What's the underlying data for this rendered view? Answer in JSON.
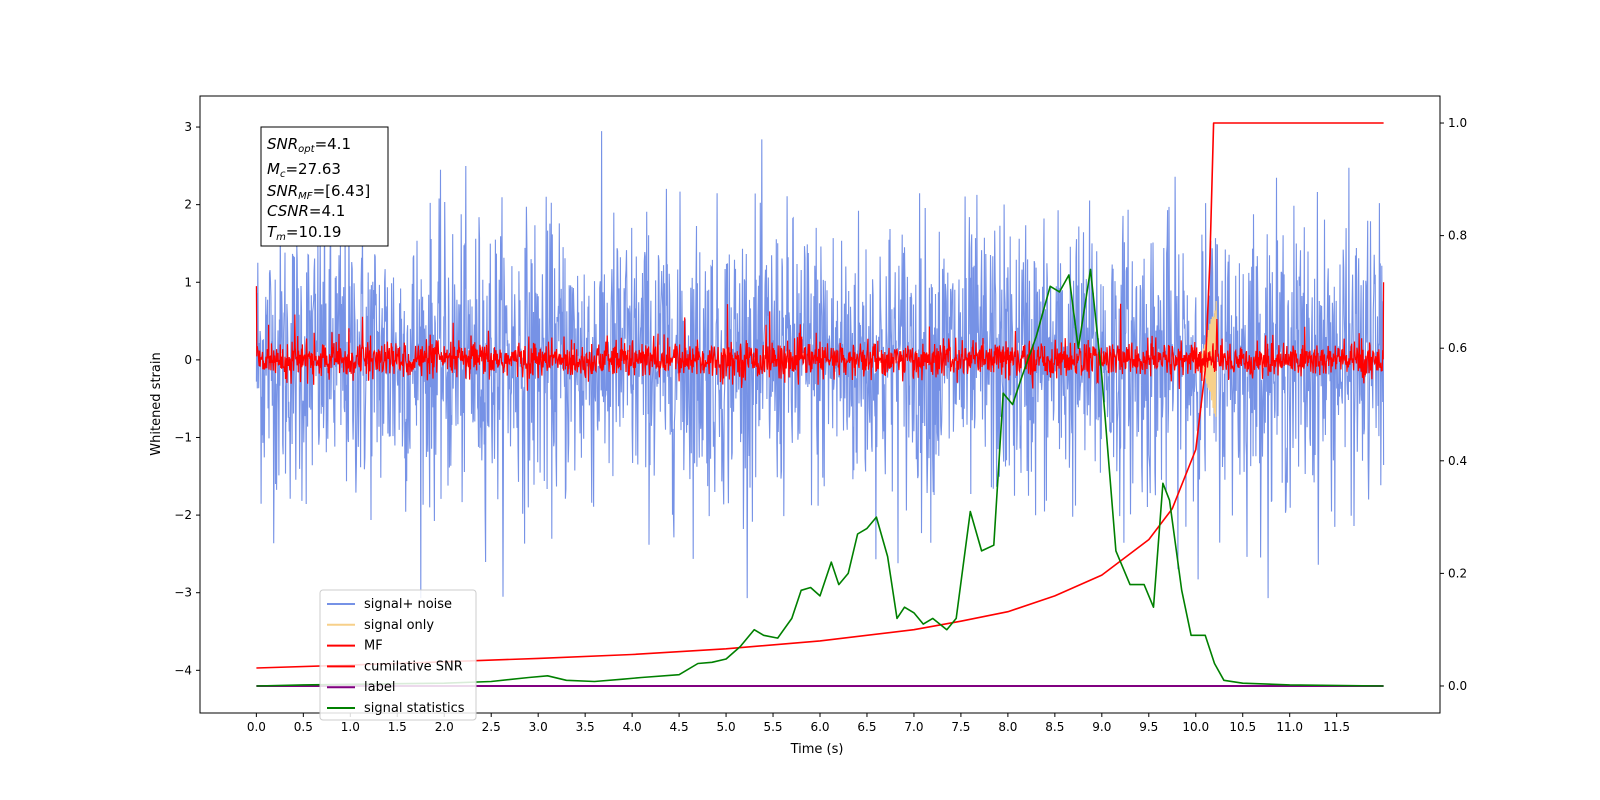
{
  "chart_data": {
    "type": "line",
    "xlabel": "Time (s)",
    "ylabel": "Whitened strain",
    "xlim": [
      -0.6,
      12.6
    ],
    "ylim": [
      -4.55,
      3.4
    ],
    "y2lim": [
      -0.048,
      1.048
    ],
    "x_ticks": [
      "0.0",
      "0.5",
      "1.0",
      "1.5",
      "2.0",
      "2.5",
      "3.0",
      "3.5",
      "4.0",
      "4.5",
      "5.0",
      "5.5",
      "6.0",
      "6.5",
      "7.0",
      "7.5",
      "8.0",
      "8.5",
      "9.0",
      "9.5",
      "10.0",
      "10.5",
      "11.0",
      "11.5"
    ],
    "y_ticks": [
      "3",
      "2",
      "1",
      "0",
      "−1",
      "−2",
      "−3",
      "−4"
    ],
    "y2_ticks": [
      "1.0",
      "0.8",
      "0.6",
      "0.4",
      "0.2",
      "0.0"
    ],
    "annotation": {
      "line1_sym": "SNR",
      "line1_sub": "opt",
      "line1_val": "=4.1",
      "line2_sym": "M",
      "line2_sub": "c",
      "line2_val": "=27.63",
      "line3_sym": "SNR",
      "line3_sub": "MF",
      "line3_val": "=[6.43]",
      "line4_sym": "CSNR",
      "line4_val": "=4.1",
      "line5_sym": "T",
      "line5_sub": "m",
      "line5_val": "=10.19"
    },
    "legend": [
      {
        "label": "signal+ noise",
        "color": "#7692e6"
      },
      {
        "label": "signal only",
        "color": "#f7d08a"
      },
      {
        "label": "MF",
        "color": "#ff0000"
      },
      {
        "label": "cumilative SNR",
        "color": "#ff0000"
      },
      {
        "label": "label",
        "color": "#800080"
      },
      {
        "label": "signal statistics",
        "color": "#008000"
      }
    ],
    "legend_position": "lower-left",
    "series": [
      {
        "name": "signal+ noise",
        "axis": "left",
        "x_range": [
          0,
          12
        ],
        "typical_amplitude": 1.2,
        "peak_amplitude": 3.07,
        "color": "#7692e6"
      },
      {
        "name": "signal only",
        "axis": "left",
        "x_range": [
          10.05,
          10.22
        ],
        "peak_amplitude": 0.8,
        "color": "#f7d08a"
      },
      {
        "name": "MF",
        "axis": "left",
        "x_range": [
          0,
          12
        ],
        "typical_amplitude": 0.35,
        "peak_amplitude": 0.95,
        "color": "#ff0000"
      },
      {
        "name": "cumilative SNR",
        "axis": "right",
        "color": "#ff0000",
        "x": [
          0.0,
          1.0,
          2.0,
          3.0,
          4.0,
          5.0,
          6.0,
          7.0,
          7.5,
          8.0,
          8.5,
          9.0,
          9.5,
          9.75,
          10.0,
          10.1,
          10.15,
          10.19,
          12.0
        ],
        "values": [
          0.032,
          0.037,
          0.043,
          0.049,
          0.056,
          0.066,
          0.08,
          0.1,
          0.115,
          0.132,
          0.16,
          0.197,
          0.26,
          0.315,
          0.42,
          0.56,
          0.75,
          1.0,
          1.0
        ]
      },
      {
        "name": "label",
        "axis": "right",
        "color": "#800080",
        "x": [
          0,
          12
        ],
        "values": [
          0.0,
          0.0
        ]
      },
      {
        "name": "signal statistics",
        "axis": "right",
        "color": "#008000",
        "x": [
          0.0,
          0.5,
          1.0,
          1.5,
          2.0,
          2.5,
          2.9,
          3.1,
          3.3,
          3.6,
          3.9,
          4.1,
          4.5,
          4.7,
          4.85,
          5.0,
          5.15,
          5.3,
          5.4,
          5.55,
          5.7,
          5.8,
          5.9,
          6.0,
          6.12,
          6.2,
          6.3,
          6.4,
          6.5,
          6.6,
          6.72,
          6.82,
          6.9,
          7.0,
          7.1,
          7.2,
          7.35,
          7.45,
          7.6,
          7.72,
          7.85,
          7.95,
          8.05,
          8.15,
          8.3,
          8.45,
          8.55,
          8.65,
          8.75,
          8.88,
          9.0,
          9.15,
          9.3,
          9.45,
          9.55,
          9.65,
          9.72,
          9.85,
          9.95,
          10.1,
          10.2,
          10.3,
          10.5,
          11.0,
          12.0
        ],
        "values": [
          0.0,
          0.002,
          0.003,
          0.004,
          0.005,
          0.008,
          0.015,
          0.018,
          0.01,
          0.008,
          0.012,
          0.015,
          0.02,
          0.04,
          0.042,
          0.048,
          0.07,
          0.1,
          0.09,
          0.085,
          0.12,
          0.17,
          0.175,
          0.16,
          0.22,
          0.18,
          0.2,
          0.27,
          0.28,
          0.3,
          0.23,
          0.12,
          0.14,
          0.13,
          0.11,
          0.12,
          0.1,
          0.12,
          0.31,
          0.24,
          0.25,
          0.52,
          0.5,
          0.55,
          0.62,
          0.71,
          0.7,
          0.73,
          0.6,
          0.74,
          0.55,
          0.24,
          0.18,
          0.18,
          0.14,
          0.36,
          0.33,
          0.17,
          0.09,
          0.09,
          0.04,
          0.01,
          0.005,
          0.002,
          0.0
        ]
      }
    ]
  }
}
